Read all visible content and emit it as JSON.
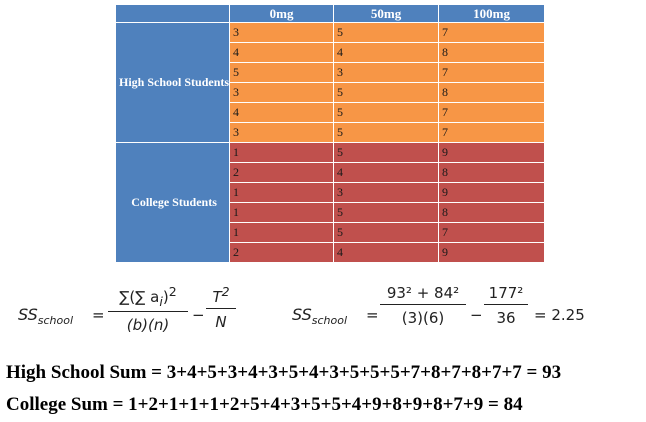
{
  "table": {
    "columns": [
      "",
      "0mg",
      "50mg",
      "100mg"
    ],
    "groups": [
      {
        "label": "High School Students",
        "rows": [
          [
            "3",
            "5",
            "7"
          ],
          [
            "4",
            "4",
            "8"
          ],
          [
            "5",
            "3",
            "7"
          ],
          [
            "3",
            "5",
            "8"
          ],
          [
            "4",
            "5",
            "7"
          ],
          [
            "3",
            "5",
            "7"
          ]
        ]
      },
      {
        "label": "College Students",
        "rows": [
          [
            "1",
            "5",
            "9"
          ],
          [
            "2",
            "4",
            "8"
          ],
          [
            "1",
            "3",
            "9"
          ],
          [
            "1",
            "5",
            "8"
          ],
          [
            "1",
            "5",
            "7"
          ],
          [
            "2",
            "4",
            "9"
          ]
        ]
      }
    ]
  },
  "formula_general": {
    "lhs": "SS",
    "lhs_sub": "school",
    "num1": "∑(∑ a",
    "num1_sub": "i",
    "num1_tail": ")",
    "num1_sup": "2",
    "den1": "(b)(n)",
    "num2": "T",
    "num2_sup": "2",
    "den2": "N"
  },
  "formula_worked": {
    "lhs": "SS",
    "lhs_sub": "school",
    "num1": "93² + 84²",
    "den1": "(3)(6)",
    "num2": "177²",
    "den2": "36",
    "result": "= 2.25"
  },
  "sums": {
    "high_school": "High School Sum = 3+4+5+3+4+3+5+4+3+5+5+5+7+8+7+8+7+7 = 93",
    "college": "College Sum = 1+2+1+1+1+2+5+4+3+5+5+4+9+8+9+8+7+9 = 84"
  },
  "colors": {
    "header_blue": "#4f81bd",
    "high_school_orange": "#f79646",
    "college_red": "#c0504d"
  }
}
